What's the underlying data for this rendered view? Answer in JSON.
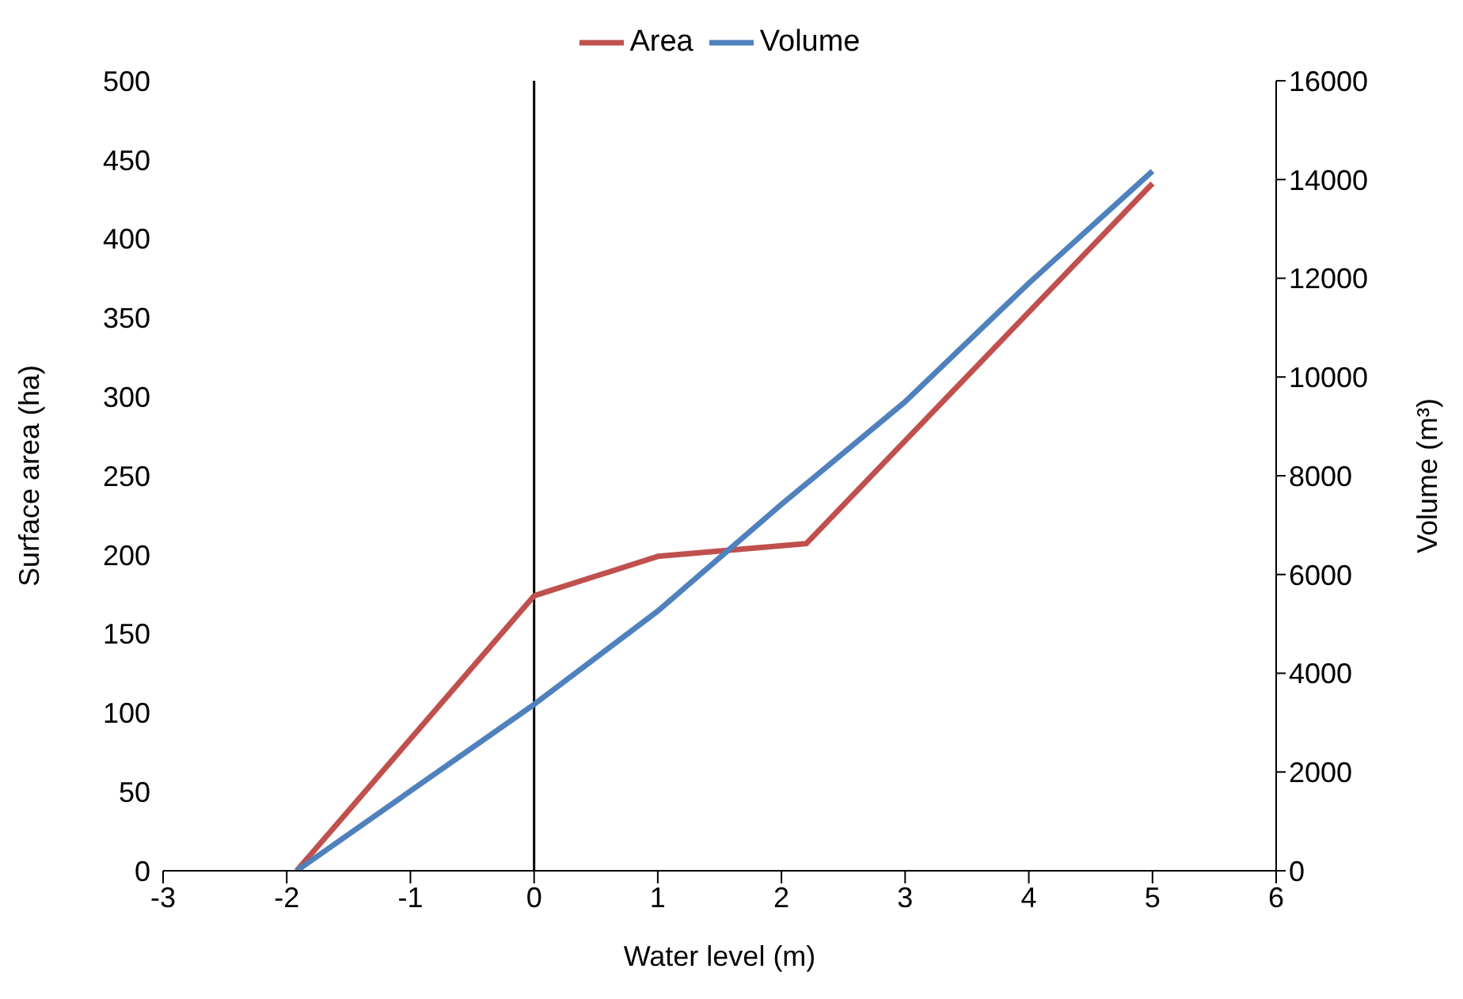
{
  "chart_data": {
    "type": "line",
    "xlabel": "Water level (m)",
    "ylabel": "Surface area (ha)",
    "y2label": "Volume (m³)",
    "xlim": [
      -3,
      6
    ],
    "xticks": [
      -3,
      -2,
      -1,
      0,
      1,
      2,
      3,
      4,
      5,
      6
    ],
    "ylim": [
      0,
      500
    ],
    "yticks": [
      0,
      50,
      100,
      150,
      200,
      250,
      300,
      350,
      400,
      450,
      500
    ],
    "y2lim": [
      0,
      16000
    ],
    "y2ticks": [
      0,
      2000,
      4000,
      6000,
      8000,
      10000,
      12000,
      14000,
      16000
    ],
    "grid": false,
    "legend": "top",
    "marker": "none",
    "line_style": "solid",
    "ref_lines": [
      {
        "axis": "x",
        "value": 0,
        "color": "#000000"
      }
    ],
    "series": [
      {
        "name": "Area",
        "color": "#c0504d",
        "x": [
          -1.92,
          0,
          1,
          2.2,
          5
        ],
        "values": [
          0,
          174,
          199,
          207,
          435
        ]
      },
      {
        "name": "Volume",
        "color": "#4f81bd",
        "axis": "y2",
        "x": [
          -1.92,
          0,
          1,
          2,
          3,
          4,
          5
        ],
        "values": [
          0,
          3370,
          5260,
          7420,
          9500,
          11900,
          14170
        ]
      }
    ]
  }
}
